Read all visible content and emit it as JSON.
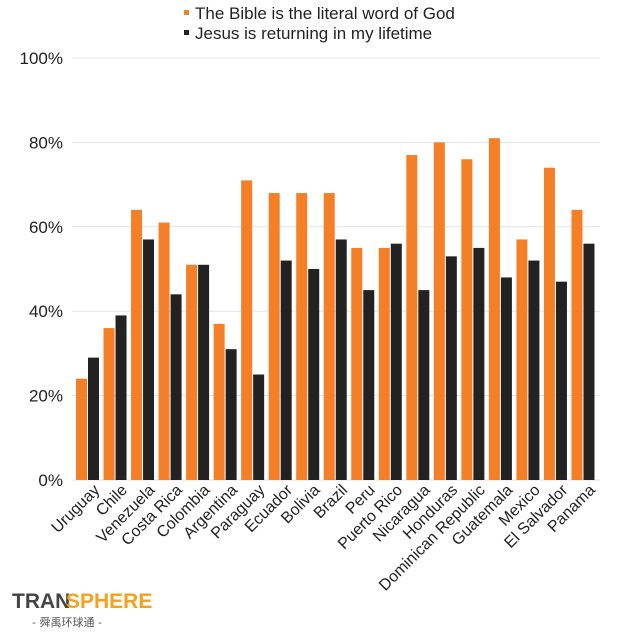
{
  "chart_data": {
    "type": "bar",
    "categories": [
      "Uruguay",
      "Chile",
      "Venezuela",
      "Costa Rica",
      "Colombia",
      "Argentina",
      "Paraguay",
      "Ecuador",
      "Bolivia",
      "Brazil",
      "Peru",
      "Puerto Rico",
      "Nicaragua",
      "Honduras",
      "Dominican Republic",
      "Guatemala",
      "Mexico",
      "El Salvador",
      "Panama"
    ],
    "series": [
      {
        "name": "The Bible is the literal word of God",
        "color": "#F47F26",
        "values": [
          24,
          36,
          64,
          61,
          51,
          37,
          71,
          68,
          68,
          68,
          55,
          55,
          77,
          80,
          76,
          81,
          57,
          74,
          64
        ]
      },
      {
        "name": "Jesus is returning in my lifetime",
        "color": "#222222",
        "values": [
          29,
          39,
          57,
          44,
          51,
          31,
          25,
          52,
          50,
          57,
          45,
          56,
          45,
          53,
          55,
          48,
          52,
          47,
          56
        ]
      }
    ],
    "ylim": [
      0,
      100
    ],
    "yticks": [
      "0%",
      "20%",
      "40%",
      "60%",
      "80%",
      "100%"
    ],
    "grid": true,
    "legend_position": "top"
  },
  "logo": {
    "text": "TRANSPHERE",
    "subtext": "-舜禹环球通-"
  }
}
